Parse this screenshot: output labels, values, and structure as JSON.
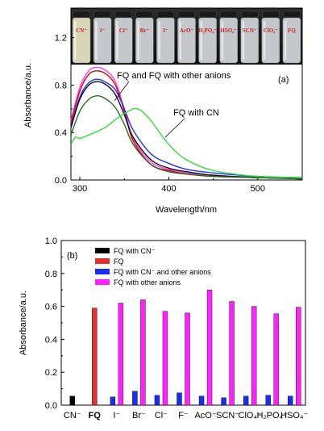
{
  "chart_data": [
    {
      "type": "line",
      "panel_label": "(a)",
      "xlabel": "Wavelength/nm",
      "ylabel": "Absorbance/a.u.",
      "xlim": [
        290,
        550
      ],
      "ylim": [
        0,
        1.45
      ],
      "xticks": [
        300,
        400,
        500
      ],
      "yticks": [
        "0.0",
        "0.4",
        "0.8",
        "1.2"
      ],
      "annotation_main": "FQ and FQ with other anions",
      "annotation_cn": "FQ with CN",
      "vial_labels": [
        "CN⁻",
        "I⁻",
        "Cl⁻",
        "Br⁻",
        "I⁻",
        "AcO⁻",
        "H₂PO₄⁻",
        "HSO₄⁻",
        "SCN⁻",
        "ClO₄⁻",
        "FQ"
      ],
      "series": [
        {
          "color": "#ff40ff",
          "x": [
            290,
            300,
            310,
            320,
            330,
            340,
            350,
            360,
            380,
            400,
            420,
            450,
            500,
            550
          ],
          "y": [
            0.5,
            0.78,
            0.92,
            0.95,
            0.92,
            0.83,
            0.6,
            0.35,
            0.15,
            0.09,
            0.06,
            0.04,
            0.02,
            0.01
          ]
        },
        {
          "color": "#e00000",
          "x": [
            290,
            300,
            310,
            320,
            330,
            340,
            350,
            360,
            380,
            400,
            420,
            450,
            500,
            550
          ],
          "y": [
            0.48,
            0.75,
            0.89,
            0.92,
            0.89,
            0.8,
            0.58,
            0.33,
            0.13,
            0.08,
            0.05,
            0.03,
            0.02,
            0.01
          ]
        },
        {
          "color": "#2030ff",
          "x": [
            290,
            300,
            310,
            320,
            330,
            340,
            350,
            360,
            380,
            400,
            420,
            450,
            500,
            550
          ],
          "y": [
            0.45,
            0.7,
            0.82,
            0.85,
            0.82,
            0.76,
            0.6,
            0.42,
            0.22,
            0.14,
            0.09,
            0.06,
            0.03,
            0.02
          ]
        },
        {
          "color": "#101010",
          "x": [
            290,
            300,
            310,
            320,
            330,
            340,
            350,
            360,
            380,
            400,
            420,
            450,
            500,
            550
          ],
          "y": [
            0.44,
            0.68,
            0.8,
            0.83,
            0.8,
            0.72,
            0.55,
            0.36,
            0.17,
            0.1,
            0.07,
            0.04,
            0.02,
            0.01
          ]
        },
        {
          "color": "#207020",
          "x": [
            290,
            300,
            310,
            320,
            330,
            340,
            350,
            360,
            380,
            400,
            420,
            450,
            500,
            550
          ],
          "y": [
            0.38,
            0.58,
            0.68,
            0.71,
            0.68,
            0.61,
            0.47,
            0.3,
            0.13,
            0.07,
            0.05,
            0.03,
            0.02,
            0.01
          ]
        },
        {
          "color": "#30e030",
          "x": [
            290,
            295,
            300,
            310,
            320,
            330,
            340,
            350,
            360,
            365,
            370,
            380,
            400,
            420,
            450,
            500,
            550
          ],
          "y": [
            0.3,
            0.36,
            0.35,
            0.38,
            0.41,
            0.45,
            0.51,
            0.56,
            0.6,
            0.6,
            0.58,
            0.5,
            0.3,
            0.17,
            0.08,
            0.03,
            0.02
          ]
        }
      ]
    },
    {
      "type": "bar",
      "panel_label": "(b)",
      "ylabel": "Absorbance/a.u.",
      "ylim": [
        0,
        1.0
      ],
      "yticks": [
        "0.0",
        "0.2",
        "0.4",
        "0.6",
        "0.8",
        "1.0"
      ],
      "categories": [
        "CN⁻",
        "FQ",
        "I⁻",
        "Br⁻",
        "Cl⁻",
        "F⁻",
        "AcO⁻",
        "SCN⁻",
        "ClO₄⁻",
        "H₂PO₄⁻",
        "HSO₄⁻"
      ],
      "series": [
        {
          "name": "FQ with CN⁻",
          "color": "#000000",
          "values": [
            0.055,
            null,
            null,
            null,
            null,
            null,
            null,
            null,
            null,
            null,
            null
          ]
        },
        {
          "name": "FQ",
          "color": "#e03030",
          "values": [
            null,
            0.59,
            null,
            null,
            null,
            null,
            null,
            null,
            null,
            null,
            null
          ]
        },
        {
          "name": "FQ with CN⁻ and other anions",
          "color": "#1a2cf0",
          "values": [
            null,
            null,
            0.05,
            0.085,
            0.06,
            0.075,
            0.055,
            0.045,
            0.055,
            0.06,
            0.055
          ]
        },
        {
          "name": "FQ with other anions",
          "color": "#ff22ff",
          "values": [
            null,
            null,
            0.62,
            0.64,
            0.57,
            0.56,
            0.7,
            0.63,
            0.6,
            0.555,
            0.595
          ]
        }
      ]
    }
  ]
}
